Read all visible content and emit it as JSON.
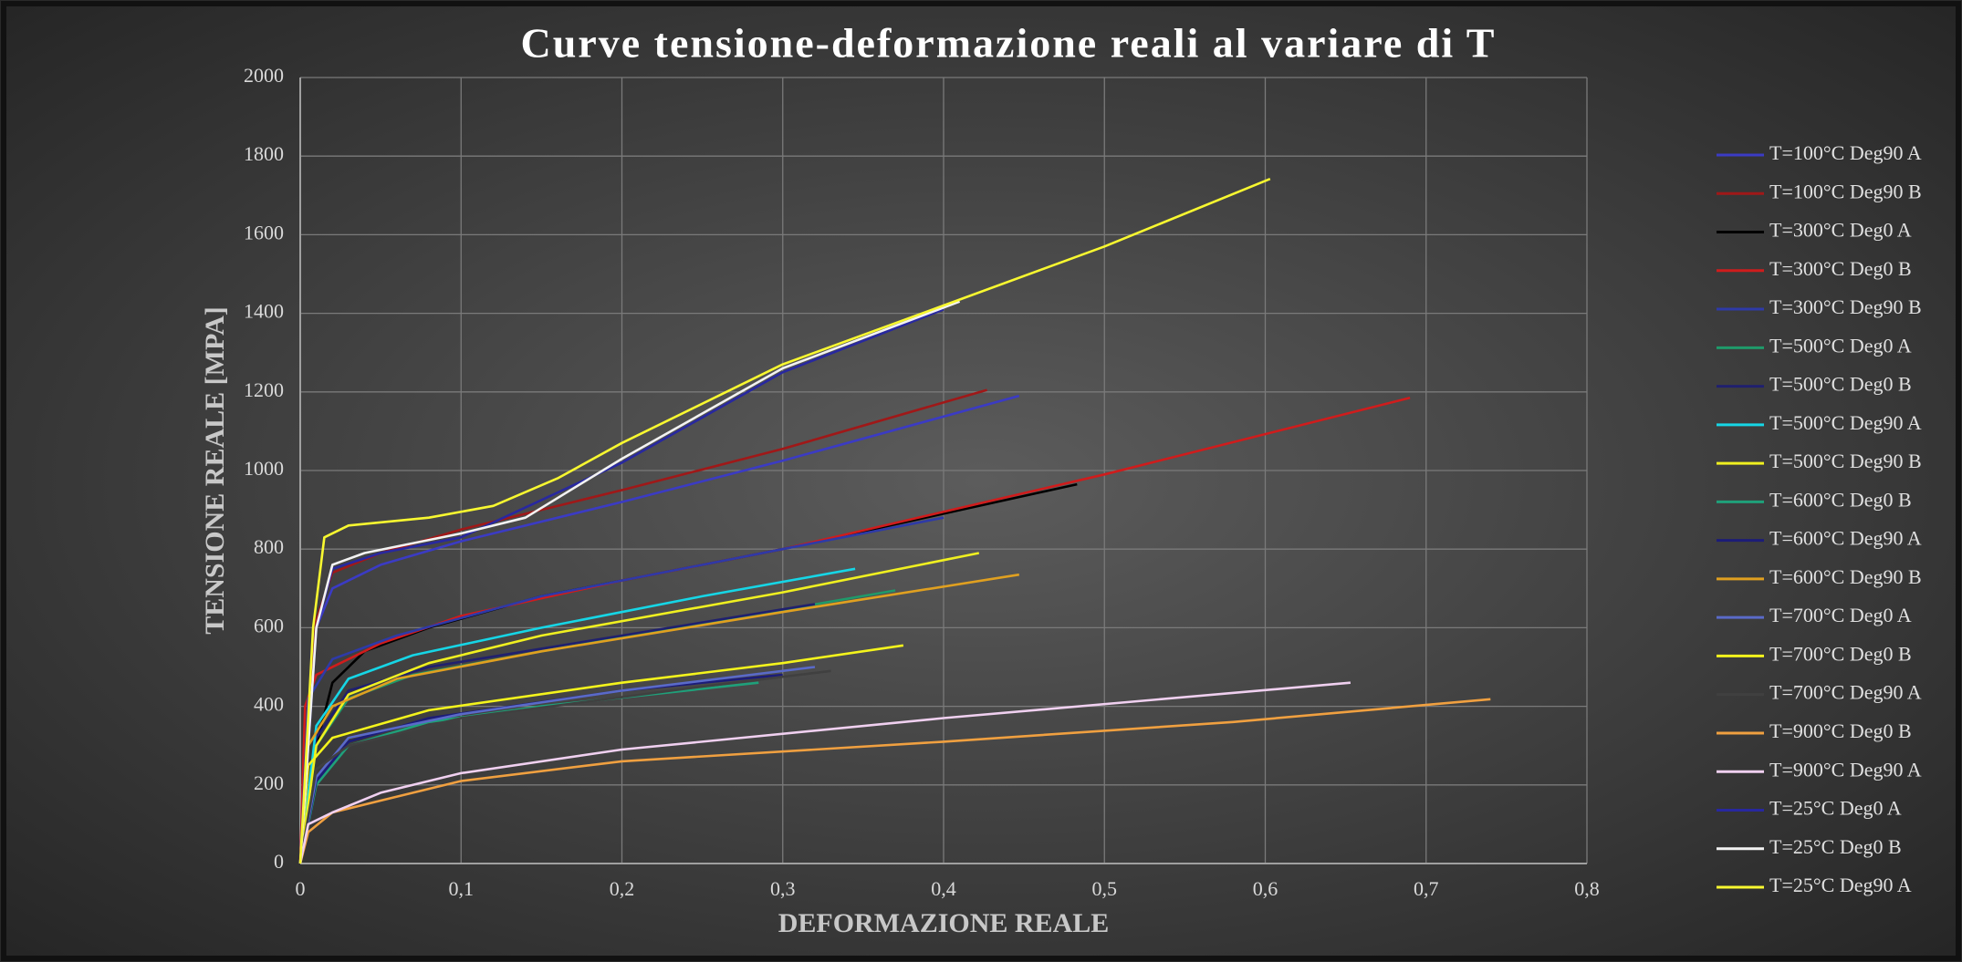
{
  "chart_data": {
    "type": "line",
    "title": "Curve tensione-deformazione reali al variare di T",
    "xlabel": "DEFORMAZIONE REALE",
    "ylabel": "TENSIONE REALE [MPA]",
    "xlim": [
      0,
      0.8
    ],
    "xticks": [
      0,
      {
        "value": 0.1,
        "label": "0,1"
      },
      {
        "value": 0.2,
        "label": "0,2"
      },
      {
        "value": 0.3,
        "label": "0,3"
      },
      {
        "value": 0.4,
        "label": "0,4"
      },
      {
        "value": 0.5,
        "label": "0,5"
      },
      {
        "value": 0.6,
        "label": "0,6"
      },
      {
        "value": 0.7,
        "label": "0,7"
      },
      {
        "value": 0.8,
        "label": "0,8"
      }
    ],
    "ylim": [
      0,
      2000
    ],
    "yticks": [
      0,
      200,
      400,
      600,
      800,
      1000,
      1200,
      1400,
      1600,
      1800,
      2000
    ],
    "grid": true,
    "legend": "right",
    "series": [
      {
        "name": "T=100°C Deg90 A",
        "color": "#3b3bc4",
        "x": [
          0,
          0.01,
          0.02,
          0.05,
          0.1,
          0.2,
          0.3,
          0.447
        ],
        "values": [
          0,
          600,
          700,
          760,
          820,
          920,
          1025,
          1190
        ]
      },
      {
        "name": "T=100°C Deg90 B",
        "color": "#a01818",
        "x": [
          0,
          0.01,
          0.02,
          0.05,
          0.1,
          0.2,
          0.3,
          0.427
        ],
        "values": [
          0,
          620,
          740,
          790,
          850,
          950,
          1055,
          1205
        ]
      },
      {
        "name": "T=300°C Deg0 A",
        "color": "#000000",
        "x": [
          0,
          0.01,
          0.02,
          0.04,
          0.08,
          0.15,
          0.3,
          0.483
        ],
        "values": [
          0,
          300,
          460,
          540,
          600,
          680,
          800,
          965
        ]
      },
      {
        "name": "T=300°C Deg0 B",
        "color": "#d01c1c",
        "x": [
          0,
          0.003,
          0.01,
          0.05,
          0.1,
          0.2,
          0.3,
          0.5,
          0.69
        ],
        "values": [
          0,
          400,
          480,
          560,
          630,
          720,
          800,
          990,
          1185
        ]
      },
      {
        "name": "T=300°C Deg90 B",
        "color": "#2e3aa8",
        "x": [
          0,
          0.005,
          0.02,
          0.06,
          0.15,
          0.3,
          0.4
        ],
        "values": [
          0,
          420,
          520,
          580,
          680,
          800,
          880
        ]
      },
      {
        "name": "T=500°C Deg0 A",
        "color": "#1f9a6a",
        "x": [
          0,
          0.01,
          0.03,
          0.07,
          0.15,
          0.25,
          0.37
        ],
        "values": [
          0,
          300,
          420,
          480,
          540,
          610,
          695
        ]
      },
      {
        "name": "T=500°C Deg0 B",
        "color": "#20206e",
        "x": [
          0,
          0.01,
          0.03,
          0.08,
          0.2,
          0.32
        ],
        "values": [
          0,
          320,
          440,
          500,
          580,
          660
        ]
      },
      {
        "name": "T=500°C Deg90 A",
        "color": "#16d6e6",
        "x": [
          0,
          0.01,
          0.03,
          0.07,
          0.15,
          0.25,
          0.345
        ],
        "values": [
          0,
          350,
          470,
          530,
          600,
          680,
          750
        ]
      },
      {
        "name": "T=500°C Deg90 B",
        "color": "#f0f020",
        "x": [
          0,
          0.01,
          0.03,
          0.08,
          0.15,
          0.3,
          0.422
        ],
        "values": [
          0,
          300,
          430,
          510,
          580,
          690,
          790
        ]
      },
      {
        "name": "T=600°C Deg0 B",
        "color": "#1fa07a",
        "x": [
          0,
          0.01,
          0.03,
          0.08,
          0.15,
          0.285
        ],
        "values": [
          0,
          200,
          300,
          360,
          400,
          460
        ]
      },
      {
        "name": "T=600°C Deg90 A",
        "color": "#1c1c78",
        "x": [
          0,
          0.01,
          0.03,
          0.08,
          0.2,
          0.3
        ],
        "values": [
          0,
          210,
          310,
          370,
          440,
          480
        ]
      },
      {
        "name": "T=600°C Deg90 B",
        "color": "#e0a020",
        "x": [
          0,
          0.005,
          0.02,
          0.06,
          0.15,
          0.3,
          0.447
        ],
        "values": [
          0,
          300,
          400,
          470,
          540,
          640,
          735
        ]
      },
      {
        "name": "T=700°C Deg0 A",
        "color": "#5a6ac8",
        "x": [
          0,
          0.01,
          0.03,
          0.1,
          0.2,
          0.32
        ],
        "values": [
          0,
          220,
          320,
          380,
          440,
          500
        ]
      },
      {
        "name": "T=700°C Deg0 B",
        "color": "#f4f41c",
        "x": [
          0,
          0.005,
          0.02,
          0.08,
          0.2,
          0.3,
          0.375
        ],
        "values": [
          0,
          250,
          320,
          390,
          460,
          510,
          555
        ]
      },
      {
        "name": "T=700°C Deg90 A",
        "color": "#404040",
        "x": [
          0,
          0.01,
          0.03,
          0.1,
          0.25,
          0.33
        ],
        "values": [
          0,
          240,
          300,
          370,
          450,
          490
        ]
      },
      {
        "name": "T=900°C Deg0 B",
        "color": "#f0a040",
        "x": [
          0,
          0.005,
          0.02,
          0.05,
          0.1,
          0.2,
          0.4,
          0.58,
          0.74
        ],
        "values": [
          0,
          80,
          130,
          160,
          210,
          260,
          310,
          360,
          418
        ]
      },
      {
        "name": "T=900°C Deg90 A",
        "color": "#f0d0f0",
        "x": [
          0,
          0.005,
          0.02,
          0.05,
          0.1,
          0.2,
          0.4,
          0.653
        ],
        "values": [
          0,
          100,
          130,
          180,
          230,
          290,
          370,
          460
        ]
      },
      {
        "name": "T=25°C Deg0 A",
        "color": "#2828a0",
        "x": [
          0,
          0.01,
          0.02,
          0.05,
          0.1,
          0.2,
          0.3,
          0.4
        ],
        "values": [
          0,
          600,
          750,
          790,
          830,
          1020,
          1250,
          1410
        ]
      },
      {
        "name": "T=25°C Deg0 B",
        "color": "#f2f2f2",
        "x": [
          0,
          0.01,
          0.02,
          0.04,
          0.1,
          0.14,
          0.2,
          0.3,
          0.41
        ],
        "values": [
          0,
          600,
          760,
          790,
          840,
          880,
          1030,
          1260,
          1430
        ]
      },
      {
        "name": "T=25°C Deg90 A",
        "color": "#f8f830",
        "x": [
          0,
          0.008,
          0.015,
          0.03,
          0.08,
          0.12,
          0.16,
          0.2,
          0.3,
          0.4,
          0.5,
          0.603
        ],
        "values": [
          0,
          600,
          830,
          860,
          880,
          910,
          980,
          1070,
          1270,
          1420,
          1570,
          1742
        ]
      }
    ]
  }
}
